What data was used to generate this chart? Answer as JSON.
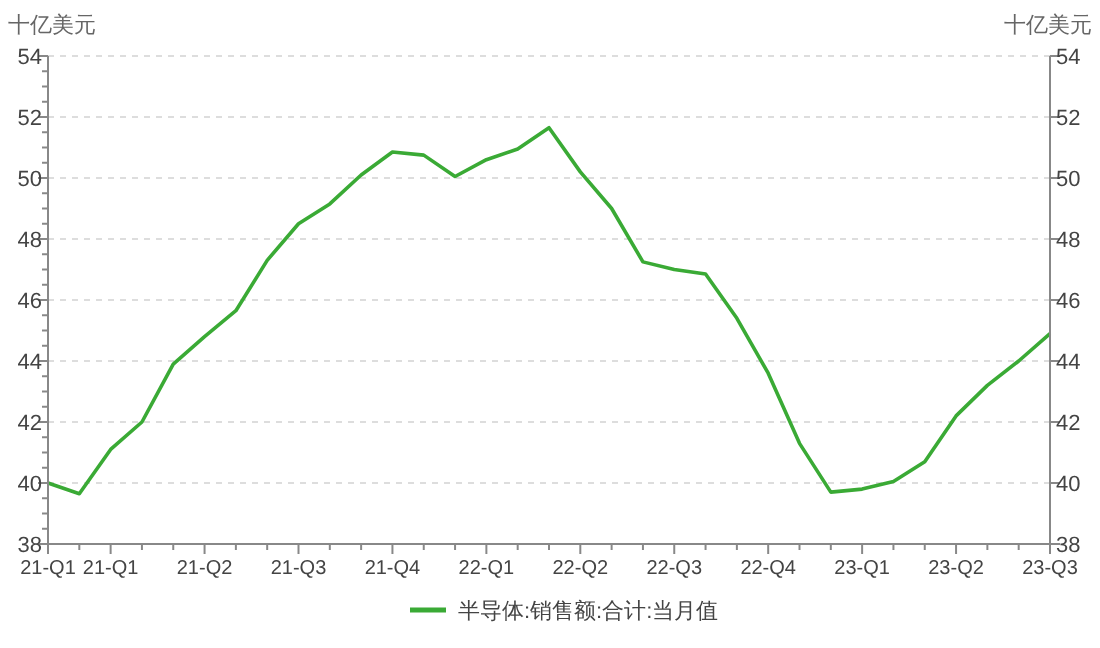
{
  "chart_data": {
    "type": "line",
    "ylabel": "十亿美元",
    "y2label": "十亿美元",
    "categories": [
      "21-Q1",
      null,
      "21-Q1",
      null,
      null,
      "21-Q2",
      null,
      null,
      "21-Q3",
      null,
      null,
      "21-Q4",
      null,
      null,
      "22-Q1",
      null,
      null,
      "22-Q2",
      null,
      null,
      "22-Q3",
      null,
      null,
      "22-Q4",
      null,
      null,
      "23-Q1",
      null,
      null,
      "23-Q2",
      null,
      null,
      "23-Q3"
    ],
    "series": [
      {
        "name": "半导体:销售额:合计:当月值",
        "color": "#3aaa35",
        "values": [
          40.0,
          39.65,
          41.1,
          42.0,
          43.9,
          44.8,
          45.65,
          47.3,
          48.5,
          49.15,
          50.1,
          50.85,
          50.75,
          50.05,
          50.6,
          50.95,
          51.65,
          50.2,
          49.0,
          47.25,
          47.0,
          46.85,
          45.4,
          43.6,
          41.3,
          39.7,
          39.8,
          40.05,
          40.7,
          42.2,
          43.2,
          44.0,
          44.9
        ]
      }
    ],
    "ylim": [
      38,
      54
    ],
    "yticks": [
      38,
      {
        "value": 38.5,
        "label": null
      },
      {
        "value": 39,
        "label": null
      },
      {
        "value": 39.5,
        "label": null
      },
      40,
      {
        "value": 40.5,
        "label": null
      },
      {
        "value": 41,
        "label": null
      },
      {
        "value": 41.5,
        "label": null
      },
      42,
      {
        "value": 42.5,
        "label": null
      },
      {
        "value": 43,
        "label": null
      },
      {
        "value": 43.5,
        "label": null
      },
      44,
      {
        "value": 44.5,
        "label": null
      },
      {
        "value": 45,
        "label": null
      },
      {
        "value": 45.5,
        "label": null
      },
      46,
      {
        "value": 46.5,
        "label": null
      },
      {
        "value": 47,
        "label": null
      },
      {
        "value": 47.5,
        "label": null
      },
      48,
      {
        "value": 48.5,
        "label": null
      },
      {
        "value": 49,
        "label": null
      },
      {
        "value": 49.5,
        "label": null
      },
      50,
      {
        "value": 50.5,
        "label": null
      },
      {
        "value": 51,
        "label": null
      },
      {
        "value": 51.5,
        "label": null
      },
      52,
      {
        "value": 52.5,
        "label": null
      },
      {
        "value": 53,
        "label": null
      },
      {
        "value": 53.5,
        "label": null
      },
      54
    ],
    "y2lim": [
      38,
      54
    ],
    "y2ticks": [
      38,
      40,
      42,
      44,
      46,
      48,
      50,
      52,
      54
    ],
    "grid": "y",
    "legend": "bottom",
    "marker": "none",
    "line_style": "solid"
  }
}
